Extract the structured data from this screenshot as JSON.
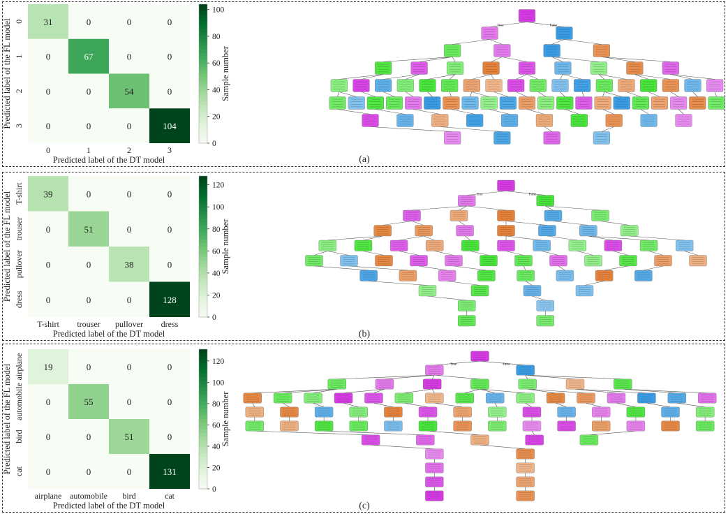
{
  "colors": {
    "heat_low": "#f7fbff",
    "heat_high": "#00441b",
    "node_class0": "#e58139",
    "node_class1": "#47e539",
    "node_class2": "#399de5",
    "node_class3": "#d739e5",
    "edge": "#555555"
  },
  "chart_data": [
    {
      "type": "heatmap",
      "panel": "(a)",
      "title": "",
      "categories": [
        "0",
        "1",
        "2",
        "3"
      ],
      "row_categories": [
        "0",
        "1",
        "2",
        "3"
      ],
      "values": [
        [
          31,
          0,
          0,
          0
        ],
        [
          0,
          67,
          0,
          0
        ],
        [
          0,
          0,
          54,
          0
        ],
        [
          0,
          0,
          0,
          104
        ]
      ],
      "xlabel": "Predicted label of the DT model",
      "ylabel": "Predicted label of the FL model",
      "colorbar_label": "Sample number",
      "colorbar_ticks": [
        "0",
        "20",
        "40",
        "60",
        "80",
        "100"
      ],
      "colorbar_range": [
        0,
        104
      ],
      "tree": {
        "branch_labels": [
          "True",
          "False"
        ],
        "levels": [
          [
            "3"
          ],
          [
            "3",
            "2"
          ],
          [
            "1",
            "3",
            "2",
            "0"
          ],
          [
            "1",
            "3",
            "1",
            "0",
            "3",
            "2",
            "1",
            "0",
            "3"
          ],
          [
            "1",
            "3",
            "2",
            "1",
            "1",
            "1",
            "0",
            "0",
            "3",
            "1",
            "2",
            "2",
            "1",
            "0",
            "1",
            "0",
            "2",
            "3"
          ],
          [
            "1",
            "2",
            "1",
            "1",
            "3",
            "2",
            "0",
            "2",
            "1",
            "2",
            "0",
            "1",
            "1",
            "3",
            "0",
            "2",
            "1",
            "0",
            "3",
            "0",
            "1"
          ],
          [
            "3",
            "2",
            "0",
            "2",
            "2",
            "0",
            "1",
            "0",
            "2",
            "3"
          ],
          [
            "3",
            "2",
            "3",
            "2"
          ]
        ]
      }
    },
    {
      "type": "heatmap",
      "panel": "(b)",
      "title": "",
      "categories": [
        "T-shirt",
        "trouser",
        "pullover",
        "dress"
      ],
      "row_categories": [
        "T-shirt",
        "trouser",
        "pullover",
        "dress"
      ],
      "values": [
        [
          39,
          0,
          0,
          0
        ],
        [
          0,
          51,
          0,
          0
        ],
        [
          0,
          0,
          38,
          0
        ],
        [
          0,
          0,
          0,
          128
        ]
      ],
      "xlabel": "Predicted label of the DT model",
      "ylabel": "Predicted label of the FL model",
      "colorbar_label": "Sample number",
      "colorbar_ticks": [
        "0",
        "20",
        "40",
        "60",
        "80",
        "100",
        "120"
      ],
      "colorbar_range": [
        0,
        128
      ],
      "tree": {
        "branch_labels": [
          "True",
          "False"
        ],
        "levels": [
          [
            "3"
          ],
          [
            "3",
            "1"
          ],
          [
            "3",
            "0",
            "0",
            "2",
            "1"
          ],
          [
            "0",
            "0",
            "3",
            "0",
            "2",
            "2",
            "1"
          ],
          [
            "1",
            "1",
            "3",
            "0",
            "1",
            "3",
            "2",
            "1",
            "3",
            "1",
            "2"
          ],
          [
            "1",
            "2",
            "0",
            "3",
            "3",
            "1",
            "1",
            "3",
            "1",
            "1",
            "0",
            "0"
          ],
          [
            "2",
            "0",
            "3",
            "1",
            "1",
            "2",
            "0",
            "2"
          ],
          [
            "1",
            "1",
            "2",
            "2"
          ],
          [
            "1",
            "2"
          ],
          [
            "1",
            "1"
          ]
        ]
      }
    },
    {
      "type": "heatmap",
      "panel": "(c)",
      "title": "",
      "categories": [
        "airplane",
        "automobile",
        "bird",
        "cat"
      ],
      "row_categories": [
        "airplane",
        "automobile",
        "bird",
        "cat"
      ],
      "values": [
        [
          19,
          0,
          0,
          0
        ],
        [
          0,
          55,
          0,
          0
        ],
        [
          0,
          0,
          51,
          0
        ],
        [
          0,
          0,
          0,
          131
        ]
      ],
      "xlabel": "Predicted label of the DT model",
      "ylabel": "Predicted label of the FL model",
      "colorbar_label": "Sample number",
      "colorbar_ticks": [
        "0",
        "20",
        "40",
        "60",
        "80",
        "100",
        "120"
      ],
      "colorbar_range": [
        0,
        131
      ],
      "tree": {
        "branch_labels": [
          "True",
          "False"
        ],
        "levels": [
          [
            "3"
          ],
          [
            "3",
            "2"
          ],
          [
            "1",
            "3",
            "3",
            "1",
            "1",
            "0",
            "1"
          ],
          [
            "0",
            "1",
            "1",
            "3",
            "3",
            "1",
            "0",
            "1",
            "2",
            "1",
            "0",
            "0",
            "3",
            "2",
            "2",
            "3"
          ],
          [
            "0",
            "0",
            "2",
            "1",
            "0",
            "3",
            "0",
            "1",
            "3",
            "2",
            "3",
            "1",
            "2",
            "1"
          ],
          [
            "1",
            "0",
            "1",
            "1",
            "2",
            "1",
            "0",
            "1",
            "3",
            "3",
            "0",
            "3",
            "0",
            "1"
          ],
          [
            "3",
            "3",
            "0",
            "3",
            "1"
          ],
          [
            "3",
            "0"
          ],
          [
            "3",
            "0"
          ],
          [
            "3",
            "0"
          ],
          [
            "3",
            "0"
          ]
        ]
      }
    }
  ],
  "panel_labels": [
    "(a)",
    "(b)",
    "(c)"
  ]
}
